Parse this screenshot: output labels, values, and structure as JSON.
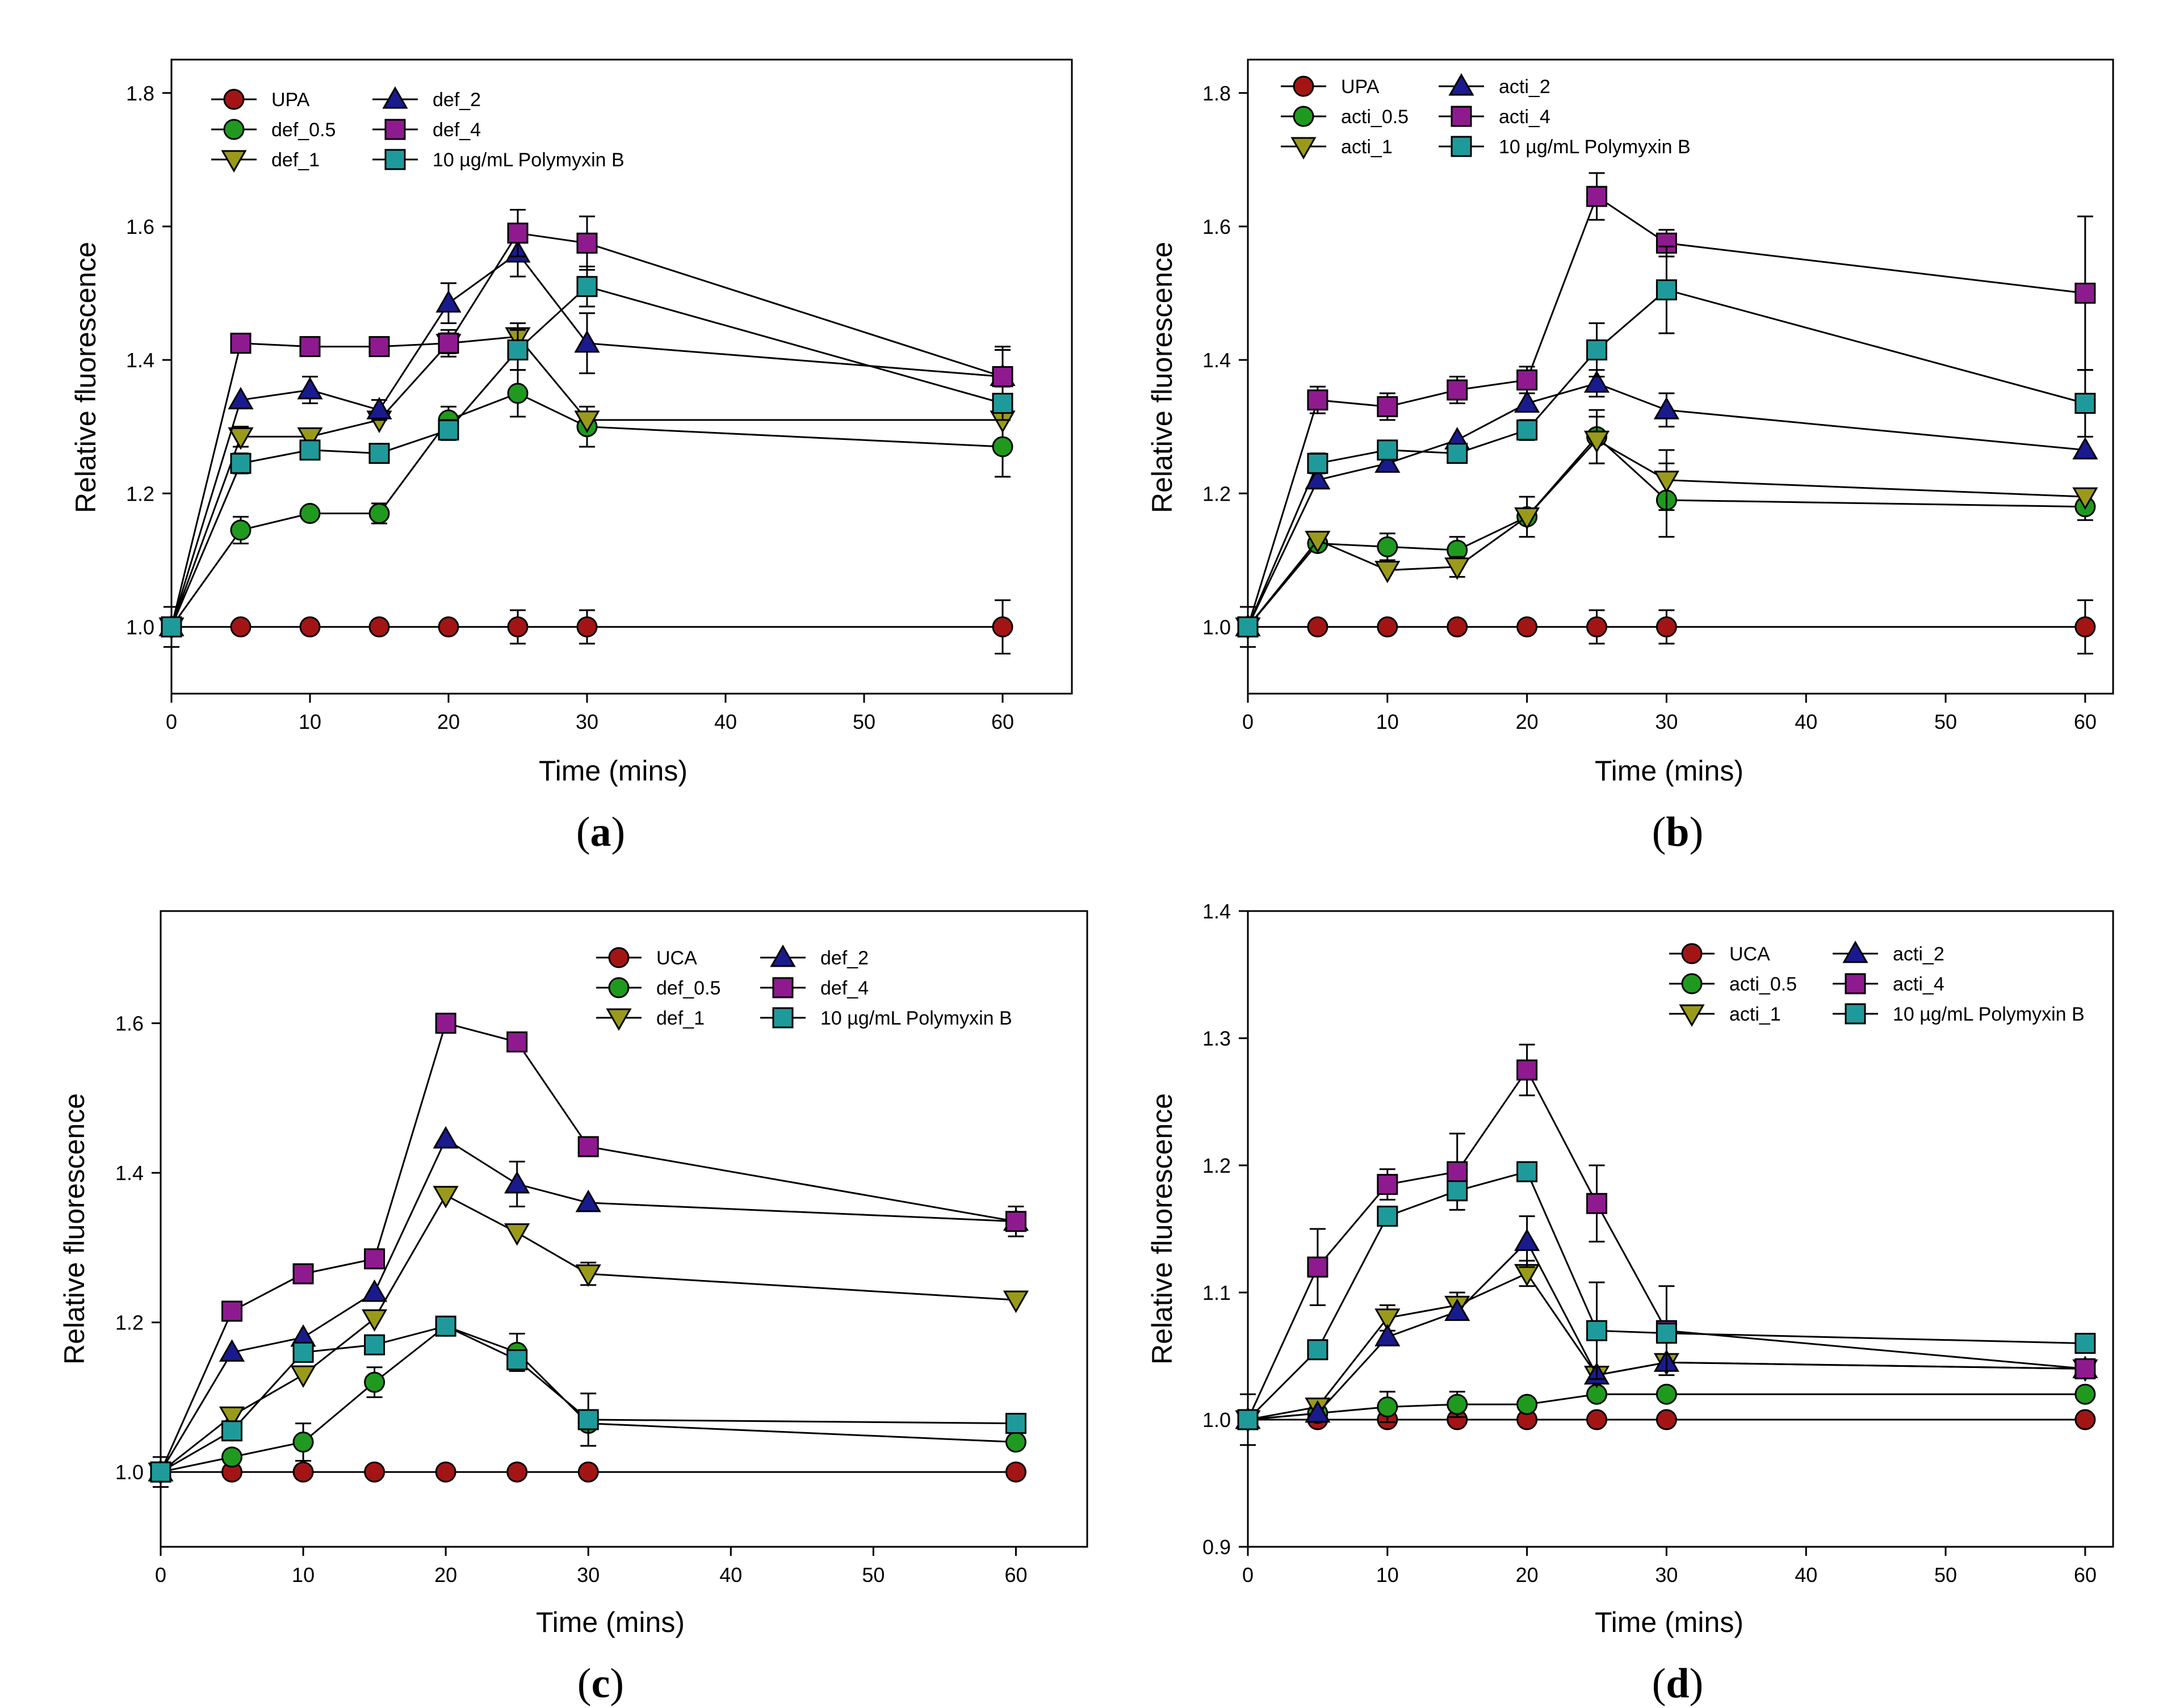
{
  "chart_data": [
    {
      "type": "line",
      "panel": "a",
      "xlabel": "Time (mins)",
      "ylabel": "Relative fluorescence",
      "xlim": [
        0,
        65
      ],
      "ylim": [
        0.9,
        1.85
      ],
      "xticks": [
        0,
        10,
        20,
        30,
        40,
        50,
        60
      ],
      "yticks": [
        1.0,
        1.2,
        1.4,
        1.6,
        1.8
      ],
      "ytick_labels": [
        "1.0",
        "1.2",
        "1.4",
        "1.6",
        "1.8"
      ],
      "legend_position": "top-left",
      "x": [
        0,
        5,
        10,
        15,
        20,
        25,
        30,
        60
      ],
      "series": [
        {
          "name": "UPA",
          "marker": "circle",
          "color": "#a31515",
          "values": [
            1.0,
            1.0,
            1.0,
            1.0,
            1.0,
            1.0,
            1.0,
            1.0
          ],
          "errors": [
            0.03,
            0.0,
            0.0,
            0.0,
            0.0,
            0.025,
            0.025,
            0.04
          ]
        },
        {
          "name": "def_0.5",
          "marker": "circle",
          "color": "#1f9a1f",
          "values": [
            1.0,
            1.145,
            1.17,
            1.17,
            1.31,
            1.35,
            1.3,
            1.27
          ],
          "errors": [
            0.0,
            0.02,
            0.0,
            0.015,
            0.02,
            0.035,
            0.03,
            0.045
          ]
        },
        {
          "name": "def_1",
          "marker": "triangle-down",
          "color": "#9a9a1a",
          "values": [
            1.0,
            1.285,
            1.285,
            1.31,
            1.425,
            1.435,
            1.31,
            1.31
          ],
          "errors": [
            0.0,
            0.015,
            0.0,
            0.0,
            0.02,
            0.02,
            0.0,
            0.0
          ]
        },
        {
          "name": "def_2",
          "marker": "triangle-up",
          "color": "#1a1a8f",
          "values": [
            1.0,
            1.34,
            1.355,
            1.325,
            1.485,
            1.56,
            1.425,
            1.375
          ],
          "errors": [
            0.0,
            0.0,
            0.02,
            0.015,
            0.03,
            0.035,
            0.045,
            0.045
          ]
        },
        {
          "name": "def_4",
          "marker": "square",
          "color": "#8f1a8f",
          "values": [
            1.0,
            1.425,
            1.42,
            1.42,
            1.425,
            1.59,
            1.575,
            1.375
          ],
          "errors": [
            0.0,
            0.0,
            0.0,
            0.0,
            0.015,
            0.035,
            0.04,
            0.04
          ]
        },
        {
          "name": "10 µg/mL Polymyxin B",
          "marker": "square",
          "color": "#1f9a9a",
          "values": [
            1.0,
            1.245,
            1.265,
            1.26,
            1.295,
            1.415,
            1.51,
            1.335
          ],
          "errors": [
            0.0,
            0.015,
            0.0,
            0.0,
            0.015,
            0.03,
            0.03,
            0.025
          ]
        }
      ]
    },
    {
      "type": "line",
      "panel": "b",
      "xlabel": "Time (mins)",
      "ylabel": "Relative fluorescence",
      "xlim": [
        0,
        62
      ],
      "ylim": [
        0.9,
        1.85
      ],
      "xticks": [
        0,
        10,
        20,
        30,
        40,
        50,
        60
      ],
      "yticks": [
        1.0,
        1.2,
        1.4,
        1.6,
        1.8
      ],
      "ytick_labels": [
        "1.0",
        "1.2",
        "1.4",
        "1.6",
        "1.8"
      ],
      "legend_position": "top-left",
      "x": [
        0,
        5,
        10,
        15,
        20,
        25,
        30,
        60
      ],
      "series": [
        {
          "name": "UPA",
          "marker": "circle",
          "color": "#a31515",
          "values": [
            1.0,
            1.0,
            1.0,
            1.0,
            1.0,
            1.0,
            1.0,
            1.0
          ],
          "errors": [
            0.03,
            0.0,
            0.0,
            0.0,
            0.0,
            0.025,
            0.025,
            0.04
          ]
        },
        {
          "name": "acti_0.5",
          "marker": "circle",
          "color": "#1f9a1f",
          "values": [
            1.0,
            1.125,
            1.12,
            1.115,
            1.165,
            1.285,
            1.19,
            1.18
          ],
          "errors": [
            0.0,
            0.0,
            0.02,
            0.02,
            0.03,
            0.04,
            0.055,
            0.02
          ]
        },
        {
          "name": "acti_1",
          "marker": "triangle-down",
          "color": "#9a9a1a",
          "values": [
            1.0,
            1.13,
            1.085,
            1.09,
            1.165,
            1.28,
            1.22,
            1.195
          ],
          "errors": [
            0.0,
            0.0,
            0.0,
            0.015,
            0.0,
            0.035,
            0.045,
            0.0
          ]
        },
        {
          "name": "acti_2",
          "marker": "triangle-up",
          "color": "#1a1a8f",
          "values": [
            1.0,
            1.22,
            1.245,
            1.28,
            1.335,
            1.365,
            1.325,
            1.265
          ],
          "errors": [
            0.0,
            0.0,
            0.0,
            0.0,
            0.0,
            0.02,
            0.025,
            0.0
          ]
        },
        {
          "name": "acti_4",
          "marker": "square",
          "color": "#8f1a8f",
          "values": [
            1.0,
            1.34,
            1.33,
            1.355,
            1.37,
            1.645,
            1.575,
            1.5
          ],
          "errors": [
            0.0,
            0.02,
            0.02,
            0.02,
            0.02,
            0.035,
            0.02,
            0.115
          ]
        },
        {
          "name": "10 µg/mL Polymyxin B",
          "marker": "square",
          "color": "#1f9a9a",
          "values": [
            1.0,
            1.245,
            1.265,
            1.26,
            1.295,
            1.415,
            1.505,
            1.335
          ],
          "errors": [
            0.0,
            0.015,
            0.0,
            0.0,
            0.015,
            0.04,
            0.065,
            0.05
          ]
        }
      ]
    },
    {
      "type": "line",
      "panel": "c",
      "xlabel": "Time (mins)",
      "ylabel": "Relative fluorescence",
      "xlim": [
        0,
        65
      ],
      "ylim": [
        0.9,
        1.75
      ],
      "xticks": [
        0,
        10,
        20,
        30,
        40,
        50,
        60
      ],
      "yticks": [
        1.0,
        1.2,
        1.4,
        1.6
      ],
      "ytick_labels": [
        "1.0",
        "1.2",
        "1.4",
        "1.6"
      ],
      "legend_position": "top-right",
      "x": [
        0,
        5,
        10,
        15,
        20,
        25,
        30,
        60
      ],
      "series": [
        {
          "name": "UCA",
          "marker": "circle",
          "color": "#a31515",
          "values": [
            1.0,
            1.0,
            1.0,
            1.0,
            1.0,
            1.0,
            1.0,
            1.0
          ],
          "errors": [
            0.02,
            0.0,
            0.0,
            0.0,
            0.0,
            0.0,
            0.0,
            0.0
          ]
        },
        {
          "name": "def_0.5",
          "marker": "circle",
          "color": "#1f9a1f",
          "values": [
            1.0,
            1.02,
            1.04,
            1.12,
            1.195,
            1.16,
            1.065,
            1.04
          ],
          "errors": [
            0.0,
            0.0,
            0.025,
            0.02,
            0.0,
            0.025,
            0.0,
            0.0
          ]
        },
        {
          "name": "def_1",
          "marker": "triangle-down",
          "color": "#9a9a1a",
          "values": [
            1.0,
            1.075,
            1.13,
            1.205,
            1.37,
            1.32,
            1.265,
            1.23
          ],
          "errors": [
            0.0,
            0.0,
            0.0,
            0.0,
            0.0,
            0.0,
            0.015,
            0.0
          ]
        },
        {
          "name": "def_2",
          "marker": "triangle-up",
          "color": "#1a1a8f",
          "values": [
            1.0,
            1.16,
            1.18,
            1.24,
            1.445,
            1.385,
            1.36,
            1.335
          ],
          "errors": [
            0.0,
            0.0,
            0.0,
            0.0,
            0.0,
            0.03,
            0.0,
            0.0
          ]
        },
        {
          "name": "def_4",
          "marker": "square",
          "color": "#8f1a8f",
          "values": [
            1.0,
            1.215,
            1.265,
            1.285,
            1.6,
            1.575,
            1.435,
            1.335
          ],
          "errors": [
            0.0,
            0.0,
            0.0,
            0.0,
            0.0,
            0.0,
            0.0,
            0.02
          ]
        },
        {
          "name": "10 µg/mL Polymyxin B",
          "marker": "square",
          "color": "#1f9a9a",
          "values": [
            1.0,
            1.055,
            1.16,
            1.17,
            1.195,
            1.15,
            1.07,
            1.065
          ],
          "errors": [
            0.0,
            0.0,
            0.0,
            0.0,
            0.0,
            0.0,
            0.035,
            0.0
          ]
        }
      ]
    },
    {
      "type": "line",
      "panel": "d",
      "xlabel": "Time (mins)",
      "ylabel": "Relative fluorescence",
      "xlim": [
        0,
        62
      ],
      "ylim": [
        0.9,
        1.4
      ],
      "xticks": [
        0,
        10,
        20,
        30,
        40,
        50,
        60
      ],
      "yticks": [
        0.9,
        1.0,
        1.1,
        1.2,
        1.3,
        1.4
      ],
      "ytick_labels": [
        "0.9",
        "1.0",
        "1.1",
        "1.2",
        "1.3",
        "1.4"
      ],
      "legend_position": "top-right",
      "x": [
        0,
        5,
        10,
        15,
        20,
        25,
        30,
        60
      ],
      "series": [
        {
          "name": "UCA",
          "marker": "circle",
          "color": "#a31515",
          "values": [
            1.0,
            1.0,
            1.0,
            1.0,
            1.0,
            1.0,
            1.0,
            1.0
          ],
          "errors": [
            0.02,
            0.0,
            0.0,
            0.0,
            0.0,
            0.0,
            0.0,
            0.0
          ]
        },
        {
          "name": "acti_0.5",
          "marker": "circle",
          "color": "#1f9a1f",
          "values": [
            1.0,
            1.005,
            1.01,
            1.012,
            1.012,
            1.02,
            1.02,
            1.02
          ],
          "errors": [
            0.0,
            0.0,
            0.012,
            0.01,
            0.0,
            0.0,
            0.0,
            0.0
          ]
        },
        {
          "name": "acti_1",
          "marker": "triangle-down",
          "color": "#9a9a1a",
          "values": [
            1.0,
            1.01,
            1.08,
            1.09,
            1.115,
            1.035,
            1.045,
            1.04
          ],
          "errors": [
            0.0,
            0.0,
            0.01,
            0.01,
            0.01,
            0.0,
            0.0,
            0.0
          ]
        },
        {
          "name": "acti_2",
          "marker": "triangle-up",
          "color": "#1a1a8f",
          "values": [
            1.0,
            1.005,
            1.065,
            1.085,
            1.14,
            1.035,
            1.045,
            1.04
          ],
          "errors": [
            0.0,
            0.0,
            0.0,
            0.0,
            0.02,
            0.0,
            0.0,
            0.0
          ]
        },
        {
          "name": "acti_4",
          "marker": "square",
          "color": "#8f1a8f",
          "values": [
            1.0,
            1.12,
            1.185,
            1.195,
            1.275,
            1.17,
            1.07,
            1.04
          ],
          "errors": [
            0.0,
            0.03,
            0.012,
            0.03,
            0.02,
            0.03,
            0.035,
            0.0
          ]
        },
        {
          "name": "10 µg/mL Polymyxin B",
          "marker": "square",
          "color": "#1f9a9a",
          "values": [
            1.0,
            1.055,
            1.16,
            1.18,
            1.195,
            1.07,
            1.068,
            1.06
          ],
          "errors": [
            0.0,
            0.0,
            0.0,
            0.0,
            0.0,
            0.038,
            0.0,
            0.0
          ]
        }
      ]
    }
  ]
}
